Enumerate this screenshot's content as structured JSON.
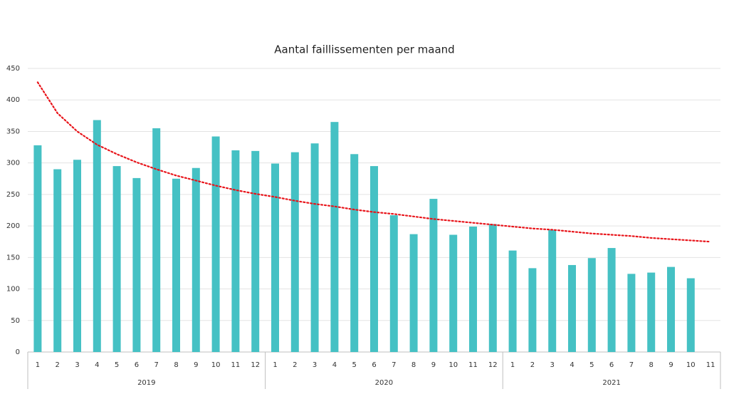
{
  "chart_data": {
    "type": "bar",
    "title": "Aantal faillissementen per maand",
    "color": "#45c1c4",
    "ylim": [
      0,
      450
    ],
    "yticks": [
      0,
      50,
      100,
      150,
      200,
      250,
      300,
      350,
      400,
      450
    ],
    "grid": true,
    "groups": [
      {
        "label": "2019",
        "categories": [
          "1",
          "2",
          "3",
          "4",
          "5",
          "6",
          "7",
          "8",
          "9",
          "10",
          "11",
          "12"
        ],
        "values": [
          328,
          290,
          305,
          368,
          295,
          276,
          355,
          275,
          292,
          342,
          320,
          319
        ]
      },
      {
        "label": "2020",
        "categories": [
          "1",
          "2",
          "3",
          "4",
          "5",
          "6",
          "7",
          "8",
          "9",
          "10",
          "11",
          "12"
        ],
        "values": [
          299,
          317,
          331,
          365,
          314,
          295,
          217,
          187,
          243,
          186,
          199,
          203
        ]
      },
      {
        "label": "2021",
        "categories": [
          "1",
          "2",
          "3",
          "4",
          "5",
          "6",
          "7",
          "8",
          "9",
          "10",
          "11"
        ],
        "values": [
          161,
          133,
          194,
          138,
          149,
          165,
          124,
          126,
          135,
          117,
          null
        ]
      }
    ],
    "trend": {
      "color": "#e8141a",
      "style": "dotted",
      "values": [
        428,
        379,
        350,
        329,
        314,
        301,
        290,
        280,
        272,
        264,
        257,
        251,
        246,
        240,
        235,
        231,
        226,
        222,
        219,
        215,
        211,
        208,
        205,
        202,
        199,
        196,
        194,
        191,
        188,
        186,
        184,
        181,
        179,
        177,
        175
      ]
    }
  }
}
